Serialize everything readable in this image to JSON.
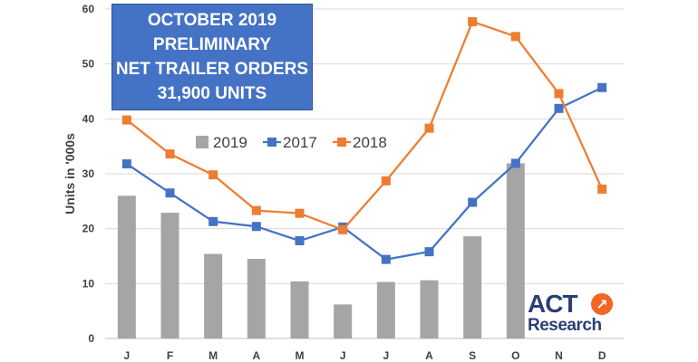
{
  "title_box": {
    "lines": [
      "OCTOBER 2019",
      "PRELIMINARY",
      "NET TRAILER ORDERS",
      "31,900 UNITS"
    ]
  },
  "logo": {
    "act": "ACT",
    "research": "Research",
    "arrow_icon": "arrow-up-right-icon"
  },
  "chart_data": {
    "type": "bar+line",
    "categories": [
      "J",
      "F",
      "M",
      "A",
      "M",
      "J",
      "J",
      "A",
      "S",
      "O",
      "N",
      "D"
    ],
    "ylabel": "Units in '000s",
    "ylim": [
      0,
      60
    ],
    "yticks": [
      0,
      10,
      20,
      30,
      40,
      50,
      60
    ],
    "grid": true,
    "legend_position": "top-center",
    "series": [
      {
        "name": "2019",
        "kind": "bar",
        "color": "#a5a5a5",
        "values": [
          26,
          22.9,
          15.4,
          14.5,
          10.4,
          6.2,
          10.3,
          10.6,
          18.6,
          31.9,
          null,
          null
        ]
      },
      {
        "name": "2017",
        "kind": "line",
        "color": "#4472c4",
        "values": [
          31.8,
          26.5,
          21.3,
          20.4,
          17.8,
          20.3,
          14.4,
          15.8,
          24.8,
          31.9,
          41.9,
          45.7
        ]
      },
      {
        "name": "2018",
        "kind": "line",
        "color": "#ed7d31",
        "values": [
          39.8,
          33.6,
          29.8,
          23.3,
          22.8,
          19.8,
          28.7,
          38.3,
          57.7,
          55,
          44.6,
          27.2
        ]
      }
    ]
  }
}
